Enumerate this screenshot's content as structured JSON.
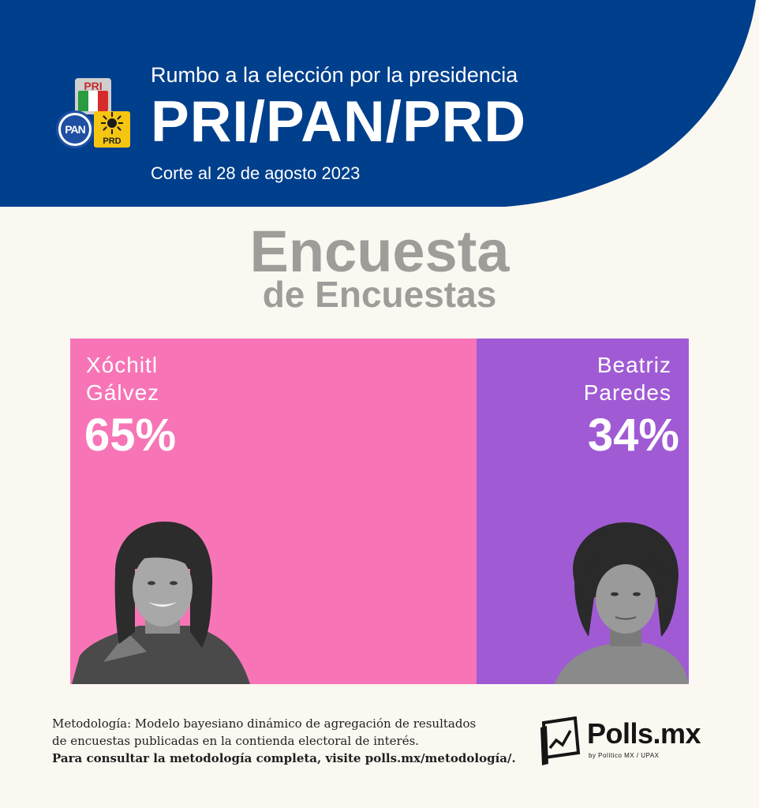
{
  "header": {
    "subtitle": "Rumbo a la elección por la presidencia",
    "title": "PRI/PAN/PRD",
    "date": "Corte al 28 de agosto 2023",
    "logos": {
      "pri": "PRI",
      "pan": "PAN",
      "prd": "PRD"
    },
    "bg_color": "#003f8c"
  },
  "main": {
    "title": "Encuesta",
    "subtitle": "de Encuestas"
  },
  "chart_data": {
    "type": "bar",
    "orientation": "horizontal-stacked",
    "categories": [
      "Xóchitl Gálvez",
      "Beatriz Paredes"
    ],
    "values": [
      65,
      34
    ],
    "labels": [
      "65%",
      "34%"
    ],
    "colors": [
      "#f775b6",
      "#a05bd4"
    ],
    "candidates": [
      {
        "name_line1": "Xóchitl",
        "name_line2": "Gálvez",
        "pct_label": "65%",
        "value": 65,
        "color": "#f775b6"
      },
      {
        "name_line1": "Beatriz",
        "name_line2": "Paredes",
        "pct_label": "34%",
        "value": 34,
        "color": "#a05bd4"
      }
    ]
  },
  "footer": {
    "methodology_line1": "Metodología: Modelo bayesiano dinámico de agregación de resultados",
    "methodology_line2": "de encuestas publicadas en la contienda electoral de interés.",
    "methodology_link": "Para consultar la metodología completa, visite polls.mx/metodología/.",
    "brand": "Polls.mx",
    "brand_by": "by Político MX / UPAX"
  }
}
